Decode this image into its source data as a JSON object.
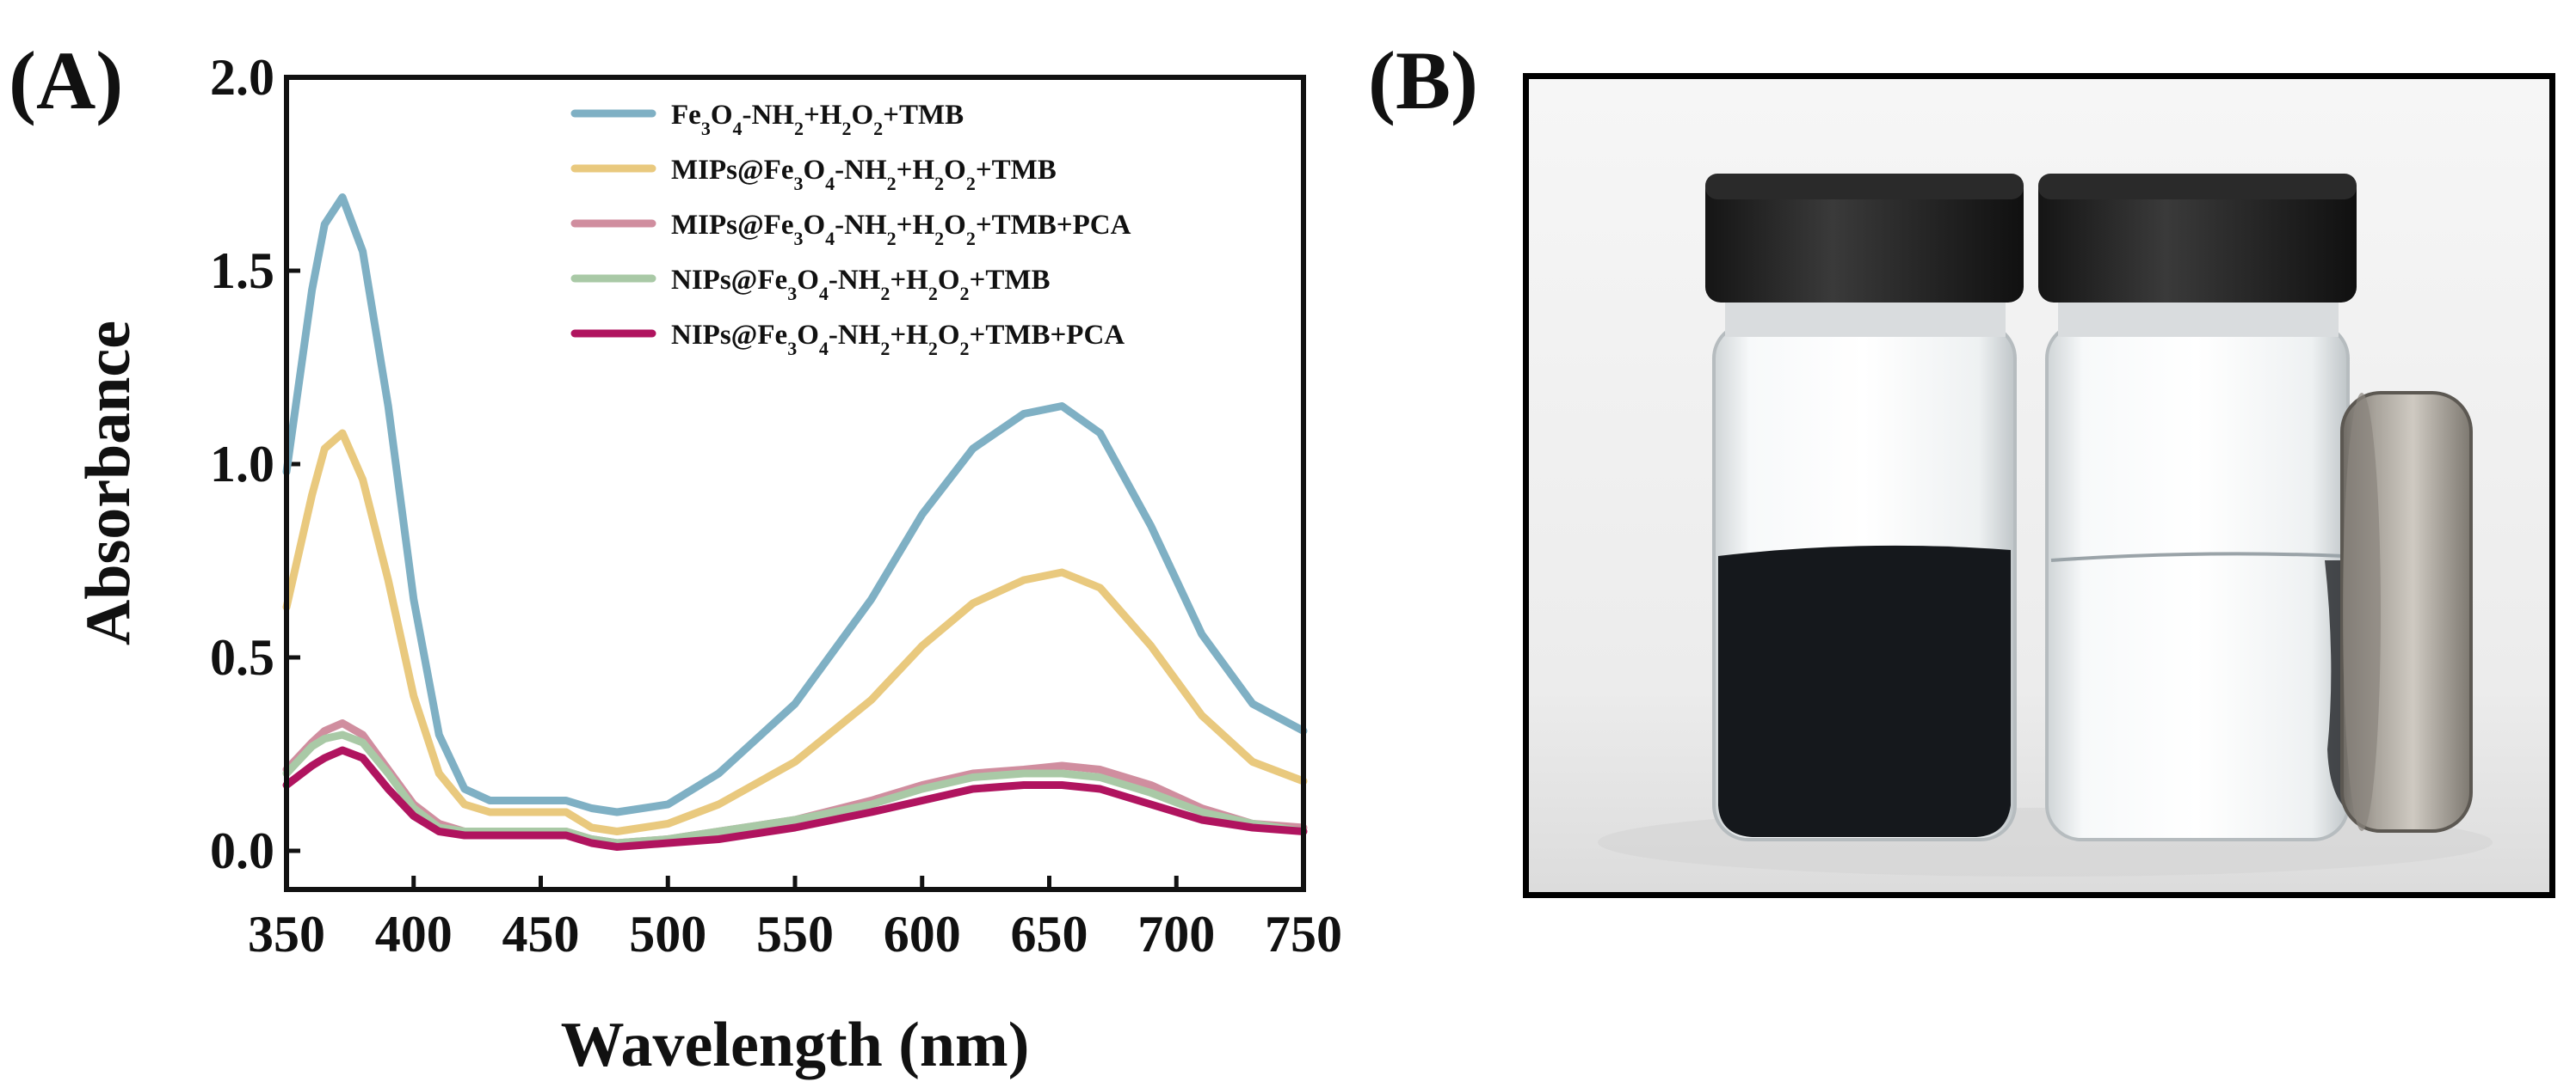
{
  "panels": {
    "a_label": "(A)",
    "b_label": "(B)"
  },
  "chart_data": {
    "type": "line",
    "xlabel": "Wavelength (nm)",
    "ylabel": "Absorbance",
    "xlim": [
      350,
      750
    ],
    "ylim": [
      -0.1,
      2.0
    ],
    "xticks": [
      350,
      400,
      450,
      500,
      550,
      600,
      650,
      700,
      750
    ],
    "yticks": [
      0.0,
      0.5,
      1.0,
      1.5,
      2.0
    ],
    "ytick_labels": [
      "0.0",
      "0.5",
      "1.0",
      "1.5",
      "2.0"
    ],
    "legend_position": "top-right",
    "grid": false,
    "x": [
      350,
      360,
      365,
      372,
      380,
      390,
      400,
      410,
      420,
      430,
      440,
      450,
      460,
      470,
      480,
      500,
      520,
      550,
      580,
      600,
      620,
      640,
      655,
      670,
      690,
      710,
      730,
      750
    ],
    "series": [
      {
        "label_parts": [
          [
            "Fe",
            ""
          ],
          [
            "3",
            "sub"
          ],
          [
            "O",
            ""
          ],
          [
            "4",
            "sub"
          ],
          [
            "-NH",
            ""
          ],
          [
            "2",
            "sub"
          ],
          [
            "+H",
            ""
          ],
          [
            "2",
            "sub"
          ],
          [
            "O",
            ""
          ],
          [
            "2",
            "sub"
          ],
          [
            "+TMB",
            ""
          ]
        ],
        "color": "#7fb0c4",
        "values": [
          0.98,
          1.45,
          1.62,
          1.69,
          1.55,
          1.15,
          0.65,
          0.3,
          0.16,
          0.13,
          0.13,
          0.13,
          0.13,
          0.11,
          0.1,
          0.12,
          0.2,
          0.38,
          0.65,
          0.87,
          1.04,
          1.13,
          1.15,
          1.08,
          0.84,
          0.56,
          0.38,
          0.31
        ]
      },
      {
        "label_parts": [
          [
            "MIPs@Fe",
            ""
          ],
          [
            "3",
            "sub"
          ],
          [
            "O",
            ""
          ],
          [
            "4",
            "sub"
          ],
          [
            "-NH",
            ""
          ],
          [
            "2",
            "sub"
          ],
          [
            "+H",
            ""
          ],
          [
            "2",
            "sub"
          ],
          [
            "O",
            ""
          ],
          [
            "2",
            "sub"
          ],
          [
            "+TMB",
            ""
          ]
        ],
        "color": "#e9c97e",
        "values": [
          0.63,
          0.92,
          1.04,
          1.08,
          0.96,
          0.7,
          0.4,
          0.2,
          0.12,
          0.1,
          0.1,
          0.1,
          0.1,
          0.06,
          0.05,
          0.07,
          0.12,
          0.23,
          0.39,
          0.53,
          0.64,
          0.7,
          0.72,
          0.68,
          0.53,
          0.35,
          0.23,
          0.18
        ]
      },
      {
        "label_parts": [
          [
            "MIPs@Fe",
            ""
          ],
          [
            "3",
            "sub"
          ],
          [
            "O",
            ""
          ],
          [
            "4",
            "sub"
          ],
          [
            "-NH",
            ""
          ],
          [
            "2",
            "sub"
          ],
          [
            "+H",
            ""
          ],
          [
            "2",
            "sub"
          ],
          [
            "O",
            ""
          ],
          [
            "2",
            "sub"
          ],
          [
            "+TMB+PCA",
            ""
          ]
        ],
        "color": "#d08e9f",
        "values": [
          0.21,
          0.28,
          0.31,
          0.33,
          0.3,
          0.21,
          0.12,
          0.07,
          0.05,
          0.05,
          0.05,
          0.05,
          0.05,
          0.03,
          0.02,
          0.03,
          0.05,
          0.08,
          0.13,
          0.17,
          0.2,
          0.21,
          0.22,
          0.21,
          0.17,
          0.11,
          0.07,
          0.06
        ]
      },
      {
        "label_parts": [
          [
            "NIPs@Fe",
            ""
          ],
          [
            "3",
            "sub"
          ],
          [
            "O",
            ""
          ],
          [
            "4",
            "sub"
          ],
          [
            "-NH",
            ""
          ],
          [
            "2",
            "sub"
          ],
          [
            "+H",
            ""
          ],
          [
            "2",
            "sub"
          ],
          [
            "O",
            ""
          ],
          [
            "2",
            "sub"
          ],
          [
            "+TMB",
            ""
          ]
        ],
        "color": "#a9c9a6",
        "values": [
          0.2,
          0.27,
          0.29,
          0.3,
          0.28,
          0.2,
          0.11,
          0.06,
          0.05,
          0.05,
          0.05,
          0.05,
          0.05,
          0.03,
          0.02,
          0.03,
          0.05,
          0.08,
          0.12,
          0.16,
          0.19,
          0.2,
          0.2,
          0.19,
          0.15,
          0.1,
          0.07,
          0.05
        ]
      },
      {
        "label_parts": [
          [
            "NIPs@Fe",
            ""
          ],
          [
            "3",
            "sub"
          ],
          [
            "O",
            ""
          ],
          [
            "4",
            "sub"
          ],
          [
            "-NH",
            ""
          ],
          [
            "2",
            "sub"
          ],
          [
            "+H",
            ""
          ],
          [
            "2",
            "sub"
          ],
          [
            "O",
            ""
          ],
          [
            "2",
            "sub"
          ],
          [
            "+TMB+PCA",
            ""
          ]
        ],
        "color": "#b0145f",
        "values": [
          0.17,
          0.22,
          0.24,
          0.26,
          0.24,
          0.16,
          0.09,
          0.05,
          0.04,
          0.04,
          0.04,
          0.04,
          0.04,
          0.02,
          0.01,
          0.02,
          0.03,
          0.06,
          0.1,
          0.13,
          0.16,
          0.17,
          0.17,
          0.16,
          0.12,
          0.08,
          0.06,
          0.05
        ]
      }
    ]
  }
}
